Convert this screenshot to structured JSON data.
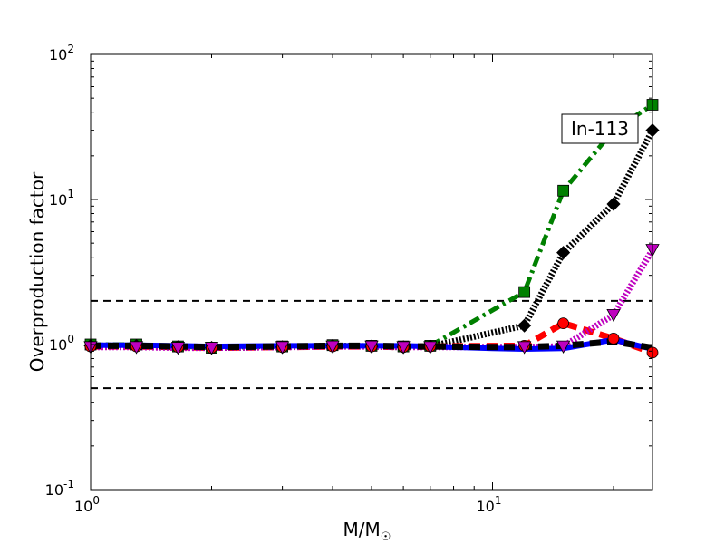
{
  "chart_data": {
    "type": "line",
    "title": "",
    "xlabel_main": "M/M",
    "xlabel_sub": "☉",
    "ylabel": "Overproduction factor",
    "xscale": "log",
    "yscale": "log",
    "xlim": [
      1,
      25
    ],
    "ylim": [
      0.1,
      100
    ],
    "grid": false,
    "x_ticks": [
      {
        "value": 1,
        "base": "10",
        "exp": "0"
      },
      {
        "value": 10,
        "base": "10",
        "exp": "1"
      }
    ],
    "y_ticks": [
      {
        "value": 0.1,
        "base": "10",
        "exp": "-1"
      },
      {
        "value": 1,
        "base": "10",
        "exp": "0"
      },
      {
        "value": 10,
        "base": "10",
        "exp": "1"
      },
      {
        "value": 100,
        "base": "10",
        "exp": "2"
      }
    ],
    "annotation": "In-113",
    "reference_lines": [
      {
        "y": 2,
        "color": "#000000",
        "style": "dashed"
      },
      {
        "y": 0.5,
        "color": "#000000",
        "style": "dashed"
      }
    ],
    "series": [
      {
        "color": "#008000",
        "line_style": "dash-dot",
        "marker": "square",
        "x": [
          1,
          1.3,
          1.65,
          2,
          3,
          4,
          5,
          6,
          7,
          12,
          15,
          20,
          25
        ],
        "y": [
          1.0,
          1.0,
          0.97,
          0.95,
          0.97,
          0.99,
          0.98,
          0.97,
          0.98,
          2.3,
          11.5,
          30,
          45
        ]
      },
      {
        "color": "#000000",
        "line_style": "dotted",
        "marker": "diamond",
        "x": [
          1,
          1.3,
          1.65,
          2,
          3,
          4,
          5,
          6,
          7,
          12,
          15,
          20,
          25
        ],
        "y": [
          0.98,
          0.98,
          0.96,
          0.95,
          0.96,
          0.98,
          0.97,
          0.96,
          0.97,
          1.35,
          4.3,
          9.3,
          30
        ]
      },
      {
        "color": "#ff0000",
        "line_style": "dashed",
        "marker": "circle",
        "x": [
          1,
          1.3,
          1.65,
          2,
          3,
          4,
          5,
          6,
          7,
          12,
          15,
          20,
          25
        ],
        "y": [
          0.97,
          0.97,
          0.96,
          0.95,
          0.96,
          0.97,
          0.97,
          0.96,
          0.97,
          0.98,
          1.4,
          1.1,
          0.88
        ]
      },
      {
        "color": "#bf00bf",
        "line_style": "dotted",
        "marker": "triangle-down",
        "x": [
          1,
          1.3,
          1.65,
          2,
          3,
          4,
          5,
          6,
          7,
          12,
          15,
          20,
          25
        ],
        "y": [
          0.96,
          0.96,
          0.95,
          0.95,
          0.96,
          0.97,
          0.97,
          0.96,
          0.96,
          0.96,
          0.97,
          1.6,
          4.5
        ]
      },
      {
        "color": "#0000ff",
        "line_style": "solid",
        "marker": "none",
        "x": [
          1,
          1.3,
          1.65,
          2,
          3,
          4,
          5,
          6,
          7,
          10,
          12,
          15,
          20,
          25
        ],
        "y": [
          0.99,
          0.99,
          0.98,
          0.97,
          0.98,
          0.98,
          0.98,
          0.98,
          0.97,
          0.94,
          0.93,
          0.94,
          1.08,
          0.93
        ]
      },
      {
        "color": "#000000",
        "line_style": "dashed",
        "marker": "none",
        "x": [
          1,
          1.3,
          1.65,
          2,
          3,
          4,
          5,
          6,
          7,
          10,
          12,
          15,
          20,
          25
        ],
        "y": [
          0.98,
          0.98,
          0.97,
          0.96,
          0.97,
          0.98,
          0.98,
          0.97,
          0.97,
          0.96,
          0.96,
          0.98,
          1.05,
          0.95
        ]
      }
    ]
  }
}
